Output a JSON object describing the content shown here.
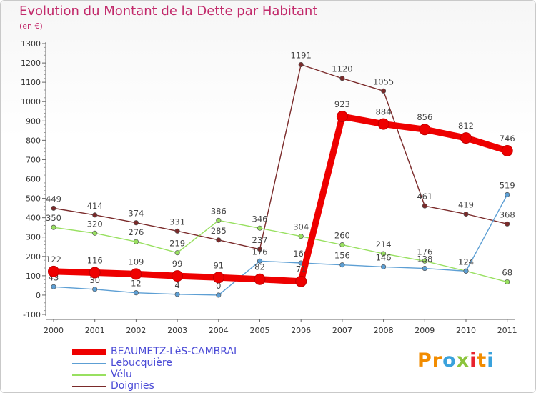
{
  "header": {
    "title": "Evolution du Montant de la Dette par Habitant",
    "unit": "(en €)"
  },
  "brand": {
    "name": "Proxiti",
    "letters": [
      "P",
      "r",
      "o",
      "x",
      "i",
      "t",
      "i"
    ],
    "colors": [
      "#f28c00",
      "#f28c00",
      "#3aa2dc",
      "#8cc43c",
      "#e8222e",
      "#f28c00",
      "#3aa2dc"
    ]
  },
  "chart_data": {
    "type": "line",
    "x": [
      "2000",
      "2001",
      "2002",
      "2003",
      "2004",
      "2005",
      "2006",
      "2007",
      "2008",
      "2009",
      "2010",
      "2011"
    ],
    "ylim": [
      -100,
      1300
    ],
    "yticks": [
      -100,
      0,
      100,
      200,
      300,
      400,
      500,
      600,
      700,
      800,
      900,
      1000,
      1100,
      1200,
      1300
    ],
    "grid": false,
    "legend_position": "bottom-left",
    "series": [
      {
        "name": "BEAUMETZ-LèS-CAMBRAI",
        "color": "#ee0000",
        "values": [
          122,
          116,
          109,
          99,
          91,
          82,
          71,
          923,
          884,
          856,
          812,
          746
        ],
        "labels": [
          "122",
          "116",
          "109",
          "99",
          "91",
          "82",
          "71",
          "923",
          "884",
          "856",
          "812",
          "746"
        ]
      },
      {
        "name": "Lebucquière",
        "color": "#5d9fd4",
        "values": [
          43,
          30,
          12,
          4,
          0,
          176,
          166,
          156,
          146,
          138,
          124,
          519
        ],
        "labels": [
          "43",
          "30",
          "12",
          "4",
          "0",
          "176",
          "166",
          "156",
          "146",
          "138",
          "124",
          "519"
        ]
      },
      {
        "name": "Vélu",
        "color": "#98e060",
        "values": [
          350,
          320,
          276,
          219,
          386,
          346,
          304,
          260,
          214,
          176,
          124,
          68
        ],
        "labels": [
          "350",
          "320",
          "276",
          "219",
          "386",
          "346",
          "304",
          "260",
          "214",
          "176",
          "124",
          "68"
        ]
      },
      {
        "name": "Doignies",
        "color": "#7a2a2a",
        "values": [
          449,
          414,
          374,
          331,
          285,
          237,
          1191,
          1120,
          1055,
          461,
          419,
          368
        ],
        "labels": [
          "449",
          "414",
          "374",
          "331",
          "285",
          "237",
          "1191",
          "1120",
          "1055",
          "461",
          "419",
          "368"
        ]
      }
    ]
  }
}
